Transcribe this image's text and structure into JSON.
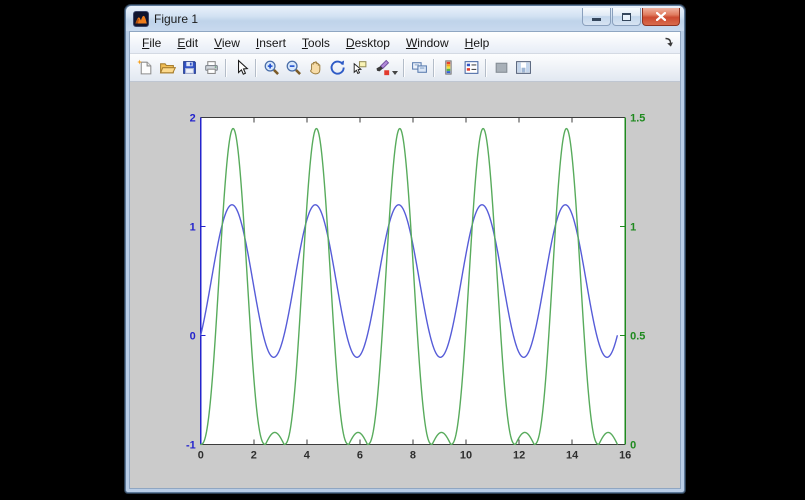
{
  "theme": {
    "desktop_bg": "#000000",
    "frame": "#b9cde6",
    "frame_border": "#5e7a9a",
    "titlebar_text": "#1b1b1b",
    "menubar_bg_top": "#ffffff",
    "menubar_bg_bottom": "#e7edf6",
    "toolbar_bg_top": "#fcfdfe",
    "toolbar_bg_bottom": "#e2e8f1",
    "canvas_bg": "#cbcbcb",
    "close_button": "#cc4a30"
  },
  "window": {
    "title": "Figure 1",
    "buttons": {
      "minimize": "minimize",
      "restore": "restore",
      "close": "close"
    }
  },
  "menu": {
    "items": [
      "File",
      "Edit",
      "View",
      "Insert",
      "Tools",
      "Desktop",
      "Window",
      "Help"
    ]
  },
  "toolbar": {
    "groups": [
      [
        {
          "id": "new-figure-button",
          "icon": "new-document-icon"
        },
        {
          "id": "open-file-button",
          "icon": "open-folder-icon"
        },
        {
          "id": "save-figure-button",
          "icon": "save-floppy-icon"
        },
        {
          "id": "print-figure-button",
          "icon": "printer-icon"
        }
      ],
      [
        {
          "id": "edit-plot-button",
          "icon": "arrow-cursor-icon"
        }
      ],
      [
        {
          "id": "zoom-in-button",
          "icon": "zoom-in-icon"
        },
        {
          "id": "zoom-out-button",
          "icon": "zoom-out-icon"
        },
        {
          "id": "pan-button",
          "icon": "hand-pan-icon"
        },
        {
          "id": "rotate-3d-button",
          "icon": "rotate-3d-icon"
        },
        {
          "id": "data-cursor-button",
          "icon": "data-cursor-icon"
        },
        {
          "id": "brush-data-button",
          "icon": "brush-icon",
          "has_dropdown": true
        }
      ],
      [
        {
          "id": "link-plot-button",
          "icon": "link-plot-icon"
        }
      ],
      [
        {
          "id": "insert-colorbar-button",
          "icon": "colorbar-icon"
        },
        {
          "id": "insert-legend-button",
          "icon": "legend-icon"
        }
      ],
      [
        {
          "id": "hide-plot-tools-button",
          "icon": "hide-plot-tools-icon"
        },
        {
          "id": "show-plot-tools-button",
          "icon": "show-plot-tools-icon"
        }
      ]
    ]
  },
  "chart_data": {
    "type": "line",
    "title": "",
    "xlabel": "",
    "grid": false,
    "box": true,
    "xlim": [
      0,
      16
    ],
    "x_ticks": [
      0,
      2,
      4,
      6,
      8,
      10,
      12,
      14,
      16
    ],
    "x_axis_color": "#3c3c3c",
    "x_range_data": [
      0,
      15.708
    ],
    "sample_step": 0.02,
    "left_axis": {
      "lim": [
        -1,
        2
      ],
      "ticks": [
        -1,
        0,
        1,
        2
      ],
      "color": "#2424cc"
    },
    "right_axis": {
      "lim": [
        0,
        1.5
      ],
      "ticks": [
        0,
        0.5,
        1,
        1.5
      ],
      "color": "#1f8a1f"
    },
    "series": [
      {
        "name": "blue-left-series",
        "axis": "left",
        "color": "#565cd8",
        "model": "y = offset + amplitude*sin(frequency*x + phase)",
        "offset": 0.5,
        "amplitude": 0.7,
        "frequency": 2,
        "phase": -0.7854,
        "period": 3.1416,
        "y_min": -0.2,
        "y_max": 1.2,
        "peaks_x": [
          1.18,
          4.32,
          7.46,
          10.6,
          13.74
        ]
      },
      {
        "name": "green-right-series",
        "axis": "right",
        "color": "#58ab5c",
        "model": "t = x mod pi; t < lobe_end ? lobe_peak*sin(pi*t/lobe_end)^lobe_exponent : bump_peak*sin(pi*(t-lobe_end)/(pi-lobe_end))",
        "period": 3.1416,
        "lobe_end": 2.44,
        "lobe_peak": 1.45,
        "lobe_exponent": 2.5,
        "bump_peak": 0.055,
        "y_min": 0,
        "y_max": 1.45,
        "peaks_x": [
          1.22,
          4.36,
          7.5,
          10.65,
          13.79
        ],
        "zeros_x_per_period": [
          0,
          2.44,
          3.1416
        ]
      }
    ]
  }
}
